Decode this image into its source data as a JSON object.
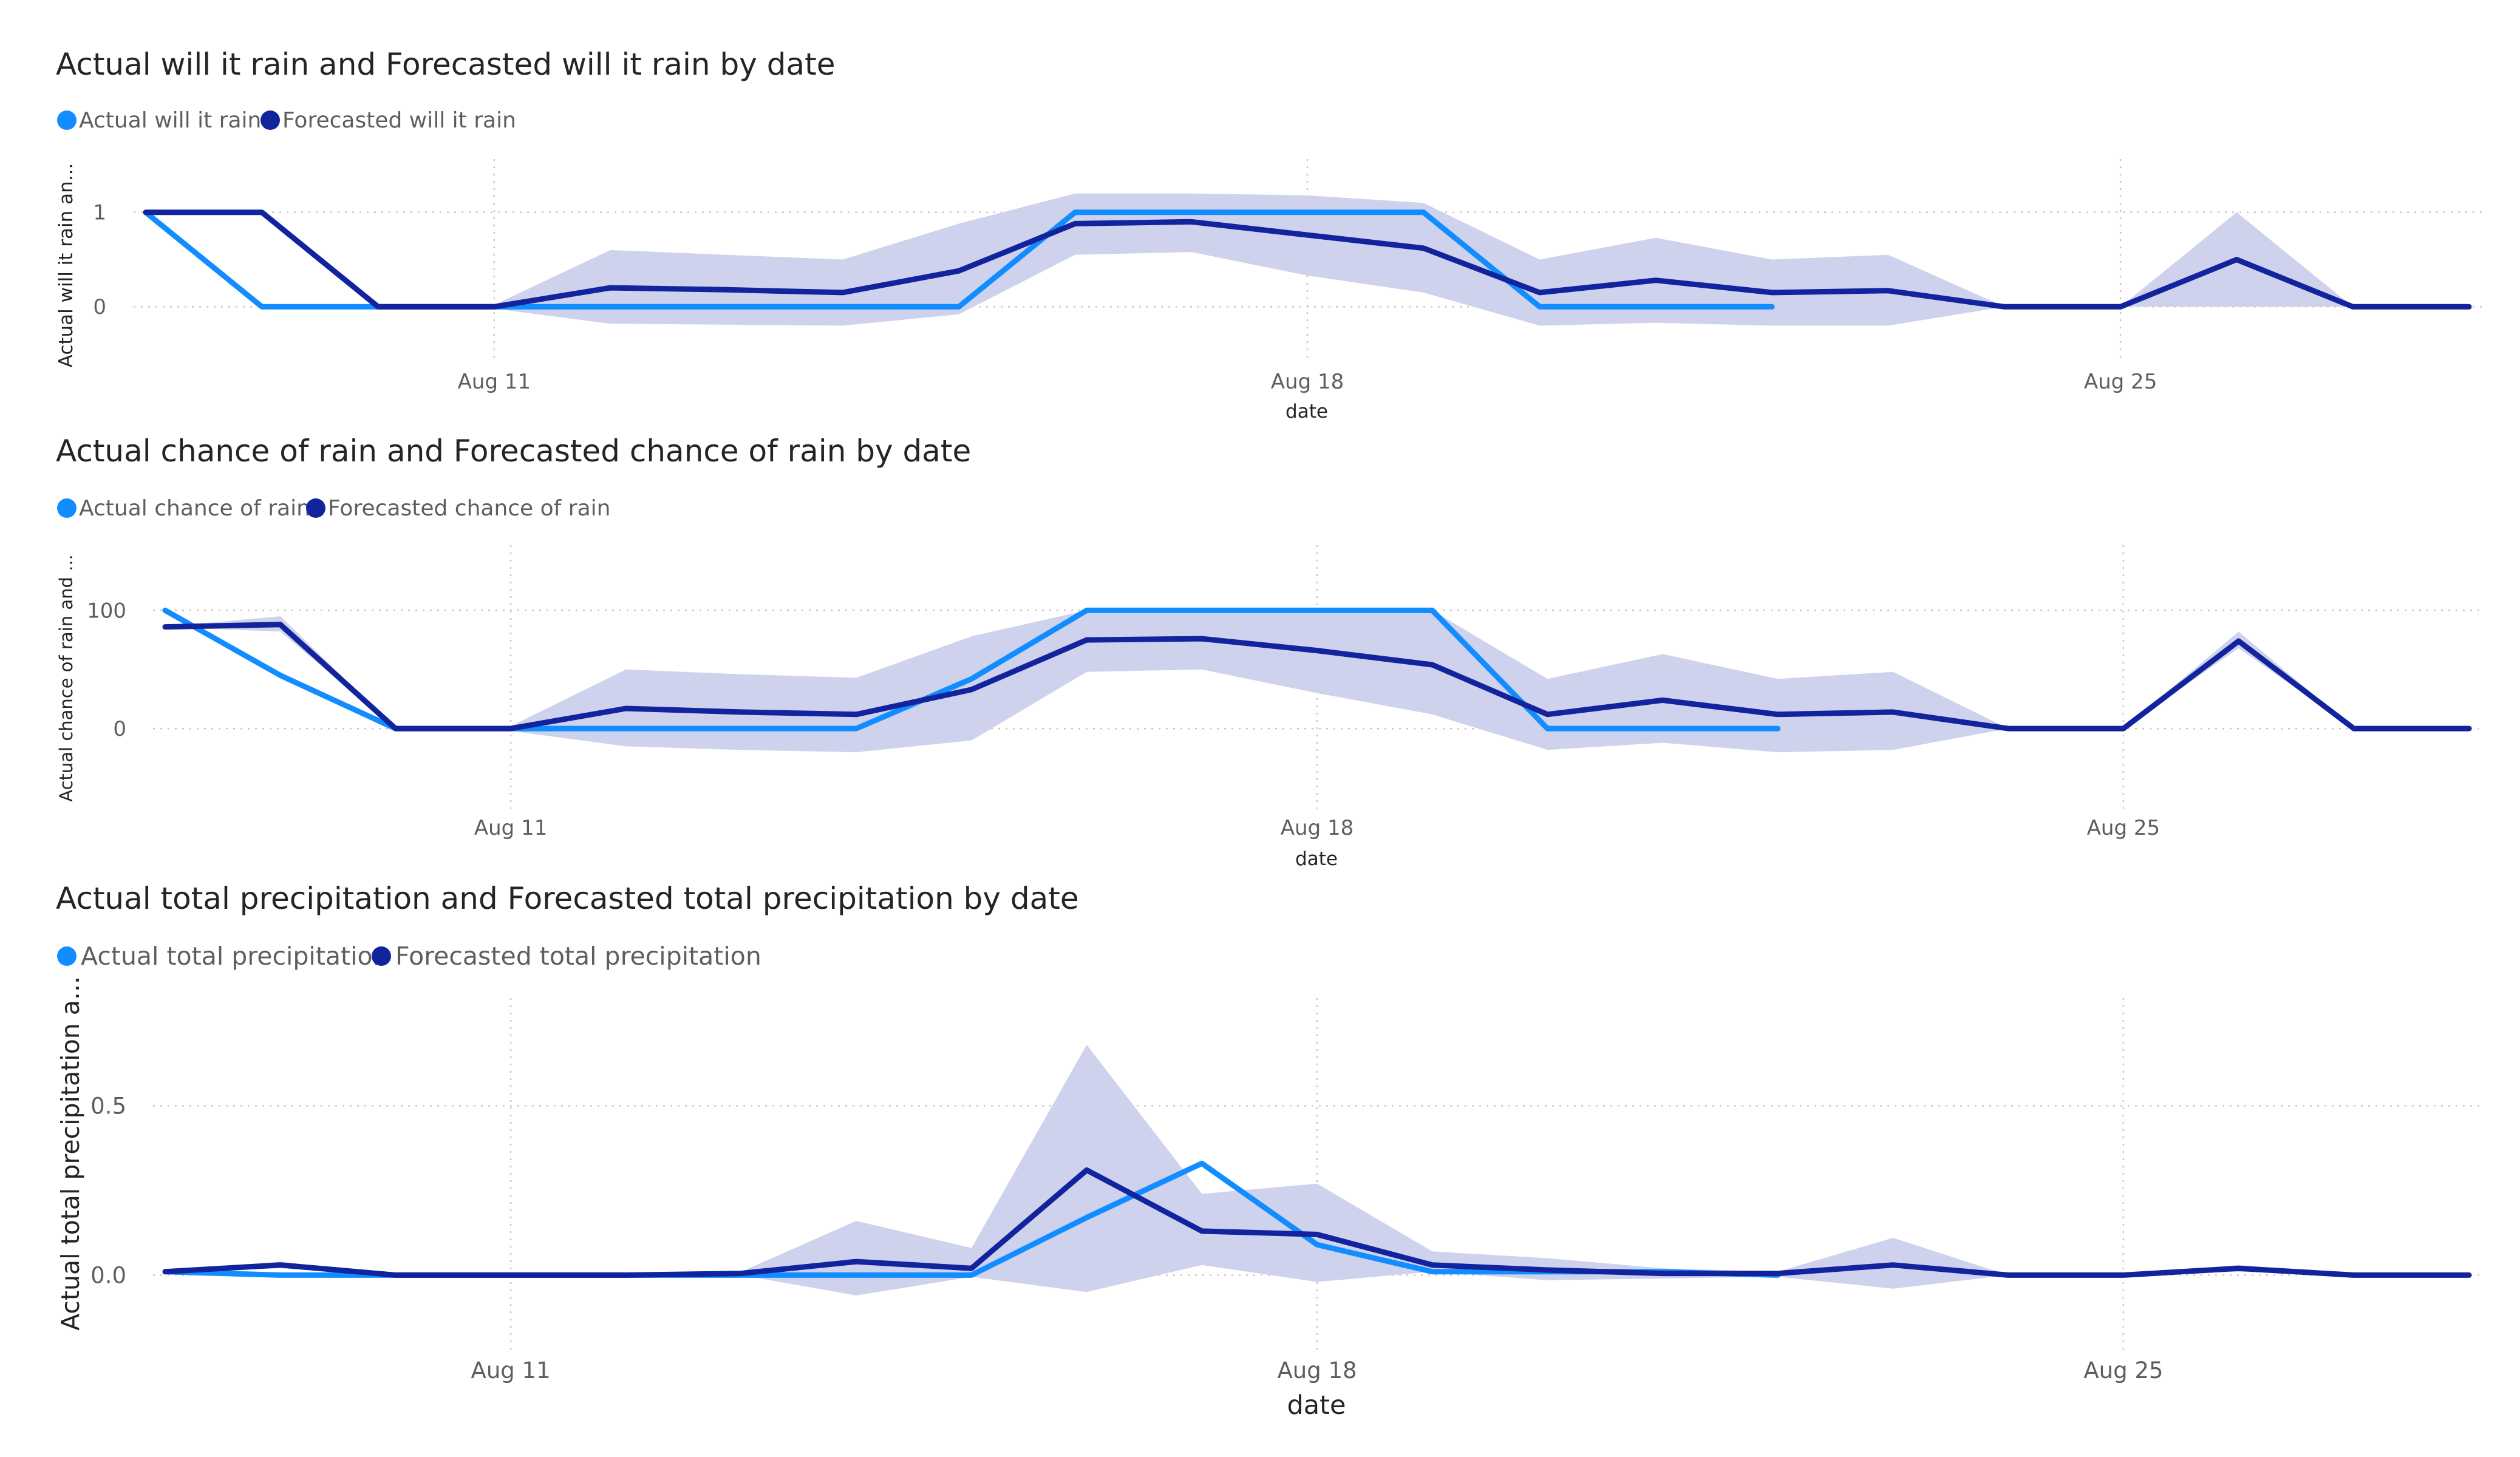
{
  "colors": {
    "actual": "#118DFF",
    "forecast": "#12239E",
    "band": "#CFD2EC",
    "text": "#252423",
    "subtext": "#605E5C"
  },
  "chart_data": [
    {
      "type": "line",
      "title": "Actual will it rain and Forecasted will it rain by date",
      "xlabel": "date",
      "ylabel": "Actual will it rain an...",
      "x": [
        "Aug 8",
        "Aug 9",
        "Aug 10",
        "Aug 11",
        "Aug 12",
        "Aug 13",
        "Aug 14",
        "Aug 15",
        "Aug 16",
        "Aug 17",
        "Aug 18",
        "Aug 19",
        "Aug 20",
        "Aug 21",
        "Aug 22",
        "Aug 23",
        "Aug 24",
        "Aug 25",
        "Aug 26",
        "Aug 27",
        "Aug 28"
      ],
      "x_ticks": [
        "Aug 11",
        "Aug 18",
        "Aug 25"
      ],
      "y_ticks": [
        "0",
        "1"
      ],
      "ylim": [
        -0.5,
        1.5
      ],
      "series": [
        {
          "name": "Actual will it rain",
          "values": [
            1,
            0,
            0,
            0,
            0,
            0,
            0,
            0,
            1,
            1,
            1,
            1,
            0,
            0,
            0,
            null,
            null,
            null,
            null,
            null,
            null
          ]
        },
        {
          "name": "Forecasted will it rain",
          "values": [
            1,
            1,
            0,
            0,
            0.2,
            0.18,
            0.15,
            0.38,
            0.88,
            0.9,
            0.76,
            0.62,
            0.15,
            0.28,
            0.15,
            0.17,
            0,
            0,
            0.5,
            0,
            0
          ]
        }
      ],
      "band_upper": [
        1,
        1,
        0,
        0.02,
        0.6,
        0.55,
        0.5,
        0.88,
        1.2,
        1.2,
        1.18,
        1.1,
        0.5,
        0.73,
        0.5,
        0.55,
        0,
        0,
        1,
        0,
        0
      ],
      "band_lower": [
        1,
        1,
        0,
        -0.02,
        -0.18,
        -0.19,
        -0.2,
        -0.08,
        0.55,
        0.58,
        0.33,
        0.15,
        -0.2,
        -0.17,
        -0.2,
        -0.2,
        0,
        0,
        0,
        0,
        0
      ],
      "grid": true
    },
    {
      "type": "line",
      "title": "Actual chance of rain and Forecasted chance of rain by date",
      "xlabel": "date",
      "ylabel": "Actual chance of rain and ...",
      "x": [
        "Aug 8",
        "Aug 9",
        "Aug 10",
        "Aug 11",
        "Aug 12",
        "Aug 13",
        "Aug 14",
        "Aug 15",
        "Aug 16",
        "Aug 17",
        "Aug 18",
        "Aug 19",
        "Aug 20",
        "Aug 21",
        "Aug 22",
        "Aug 23",
        "Aug 24",
        "Aug 25",
        "Aug 26",
        "Aug 27",
        "Aug 28"
      ],
      "x_ticks": [
        "Aug 11",
        "Aug 18",
        "Aug 25"
      ],
      "y_ticks": [
        "0",
        "100"
      ],
      "ylim": [
        -60,
        150
      ],
      "series": [
        {
          "name": "Actual chance of rain",
          "values": [
            100,
            45,
            0,
            0,
            0,
            0,
            0,
            42,
            100,
            100,
            100,
            100,
            0,
            0,
            0,
            null,
            null,
            null,
            null,
            null,
            null
          ]
        },
        {
          "name": "Forecasted  chance of rain",
          "values": [
            86,
            88,
            0,
            0,
            17,
            14,
            12,
            33,
            75,
            76,
            66,
            54,
            12,
            24,
            12,
            14,
            0,
            0,
            74,
            0,
            0
          ]
        },
        {
          "name": "Forecasted  chance of rain",
          "values": [
            86,
            88,
            0,
            0,
            17,
            14,
            12,
            33,
            75,
            76,
            66,
            54,
            12,
            24,
            12,
            14,
            0,
            0,
            74,
            0,
            0
          ]
        }
      ],
      "band_upper": [
        86,
        95,
        0,
        2,
        50,
        46,
        43,
        78,
        100,
        102,
        100,
        100,
        42,
        63,
        42,
        48,
        0,
        0,
        82,
        0,
        0
      ],
      "band_lower": [
        86,
        82,
        0,
        -2,
        -15,
        -18,
        -20,
        -10,
        48,
        50,
        30,
        12,
        -18,
        -12,
        -20,
        -18,
        0,
        0,
        68,
        0,
        0
      ],
      "grid": true
    },
    {
      "type": "line",
      "title": "Actual total precipitation and Forecasted total precipitation by date",
      "xlabel": "date",
      "ylabel": "Actual total precipitation a...",
      "x": [
        "Aug 8",
        "Aug 9",
        "Aug 10",
        "Aug 11",
        "Aug 12",
        "Aug 13",
        "Aug 14",
        "Aug 15",
        "Aug 16",
        "Aug 17",
        "Aug 18",
        "Aug 19",
        "Aug 20",
        "Aug 21",
        "Aug 22",
        "Aug 23",
        "Aug 24",
        "Aug 25",
        "Aug 26",
        "Aug 27",
        "Aug 28"
      ],
      "x_ticks": [
        "Aug 11",
        "Aug 18",
        "Aug 25"
      ],
      "y_ticks": [
        "0.0",
        "0.5"
      ],
      "ylim": [
        -0.2,
        0.8
      ],
      "series": [
        {
          "name": "Actual total precipitation",
          "values": [
            0.01,
            0,
            0,
            0,
            0,
            0,
            0,
            0,
            0.17,
            0.33,
            0.09,
            0.01,
            0.01,
            0.01,
            0,
            null,
            null,
            null,
            null,
            null,
            null
          ]
        },
        {
          "name": "Forecasted total precipitation",
          "values": [
            0.01,
            0.03,
            0,
            0,
            0,
            0.005,
            0.04,
            0.02,
            0.31,
            0.13,
            0.12,
            0.03,
            0.015,
            0.005,
            0.005,
            0.03,
            0,
            0,
            0.02,
            0,
            0
          ]
        }
      ],
      "band_upper": [
        0.01,
        0.04,
        0,
        0.005,
        0.005,
        0.01,
        0.16,
        0.08,
        0.68,
        0.24,
        0.27,
        0.07,
        0.05,
        0.02,
        0.01,
        0.11,
        0,
        0,
        0.03,
        0,
        0
      ],
      "band_lower": [
        0.01,
        0.02,
        0,
        -0.005,
        -0.005,
        0,
        -0.06,
        -0.005,
        -0.05,
        0.03,
        -0.02,
        0.01,
        -0.015,
        -0.01,
        -0.005,
        -0.04,
        0,
        0,
        0.01,
        0,
        0
      ],
      "grid": true
    }
  ]
}
